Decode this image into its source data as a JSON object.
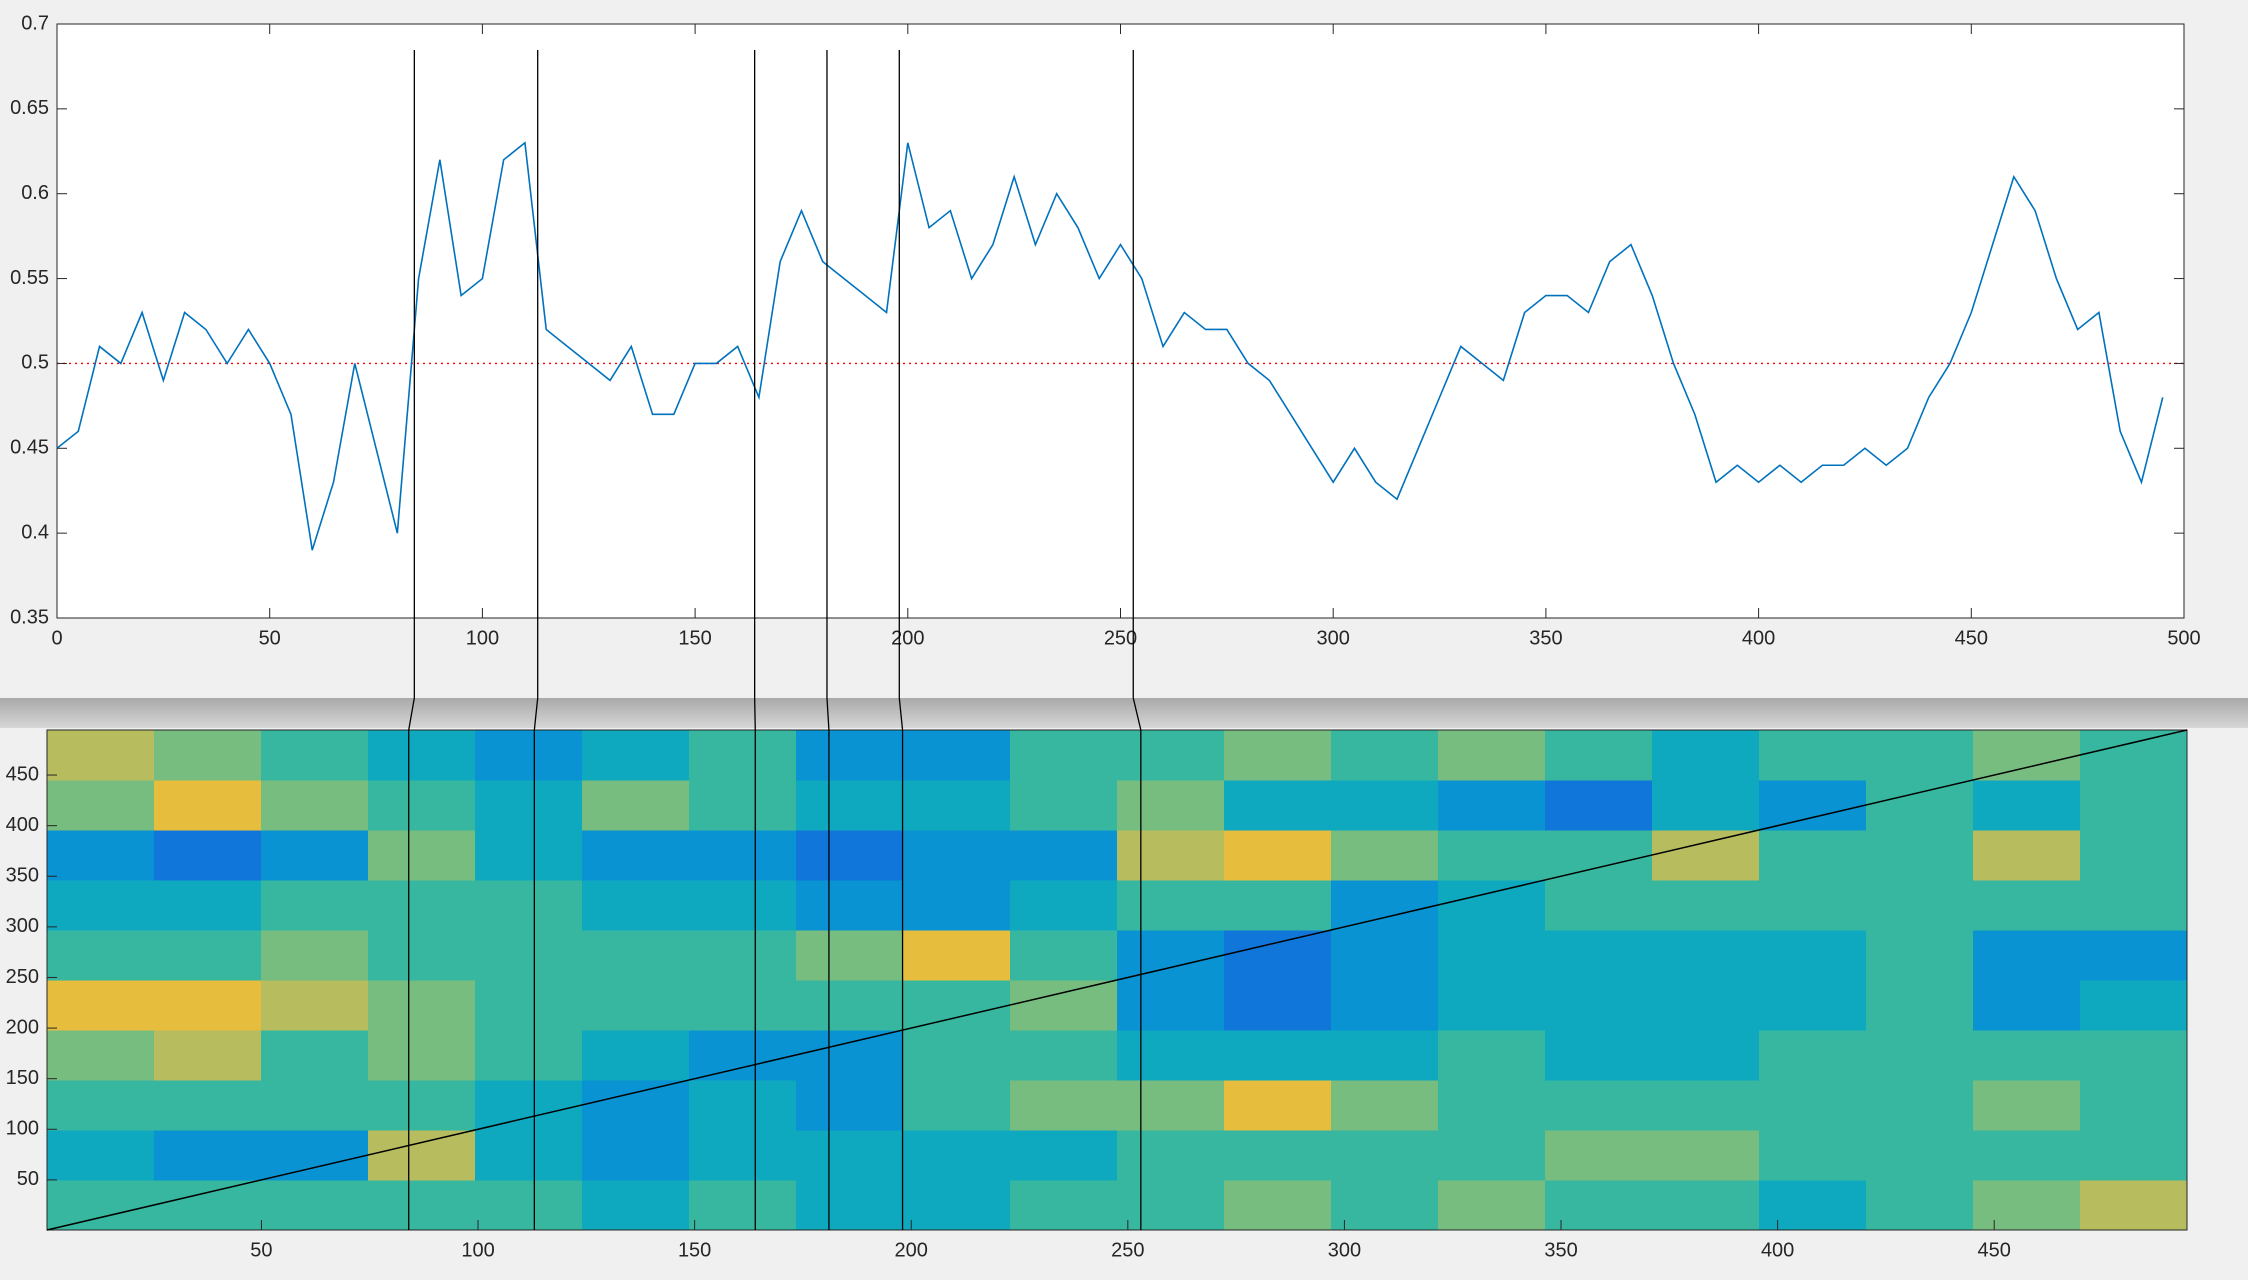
{
  "chart_data": [
    {
      "type": "line",
      "x": [
        0,
        5,
        10,
        15,
        20,
        25,
        30,
        35,
        40,
        45,
        50,
        55,
        60,
        65,
        70,
        75,
        80,
        85,
        90,
        95,
        100,
        105,
        110,
        115,
        120,
        125,
        130,
        135,
        140,
        145,
        150,
        155,
        160,
        165,
        170,
        175,
        180,
        185,
        190,
        195,
        200,
        205,
        210,
        215,
        220,
        225,
        230,
        235,
        240,
        245,
        250,
        255,
        260,
        265,
        270,
        275,
        280,
        285,
        290,
        295,
        300,
        305,
        310,
        315,
        320,
        325,
        330,
        335,
        340,
        345,
        350,
        355,
        360,
        365,
        370,
        375,
        380,
        385,
        390,
        395,
        400,
        405,
        410,
        415,
        420,
        425,
        430,
        435,
        440,
        445,
        450,
        455,
        460,
        465,
        470,
        475,
        480,
        485,
        490,
        495
      ],
      "series": [
        {
          "color": "#0072bd",
          "values": [
            0.45,
            0.46,
            0.51,
            0.5,
            0.53,
            0.49,
            0.53,
            0.52,
            0.5,
            0.52,
            0.5,
            0.47,
            0.39,
            0.43,
            0.5,
            0.45,
            0.4,
            0.55,
            0.62,
            0.54,
            0.55,
            0.62,
            0.63,
            0.52,
            0.51,
            0.5,
            0.49,
            0.51,
            0.47,
            0.47,
            0.5,
            0.5,
            0.51,
            0.48,
            0.56,
            0.59,
            0.56,
            0.55,
            0.54,
            0.53,
            0.63,
            0.58,
            0.59,
            0.55,
            0.57,
            0.61,
            0.57,
            0.6,
            0.58,
            0.55,
            0.57,
            0.55,
            0.51,
            0.53,
            0.52,
            0.52,
            0.5,
            0.49,
            0.47,
            0.45,
            0.43,
            0.45,
            0.43,
            0.42,
            0.45,
            0.48,
            0.51,
            0.5,
            0.49,
            0.53,
            0.54,
            0.54,
            0.53,
            0.56,
            0.57,
            0.54,
            0.5,
            0.47,
            0.43,
            0.44,
            0.43,
            0.44,
            0.43,
            0.44,
            0.44,
            0.45,
            0.44,
            0.45,
            0.48,
            0.5,
            0.53,
            0.57,
            0.61,
            0.59,
            0.55,
            0.52,
            0.53,
            0.46,
            0.43,
            0.48
          ]
        }
      ],
      "xlim": [
        0,
        500
      ],
      "ylim": [
        0.35,
        0.7
      ],
      "xticks": [
        0,
        50,
        100,
        150,
        200,
        250,
        300,
        350,
        400,
        450,
        500
      ],
      "yticks": [
        0.35,
        0.4,
        0.45,
        0.5,
        0.55,
        0.6,
        0.65,
        0.7
      ],
      "reference_line": {
        "value": 0.5,
        "color": "#ff0000"
      },
      "markers": [
        84,
        113,
        164,
        181,
        198,
        253
      ],
      "marker_color": "#000000"
    },
    {
      "type": "heatmap",
      "colormap": "parula",
      "xlim": [
        0.5,
        494.5
      ],
      "ylim": [
        0.5,
        494.5
      ],
      "xticks": [
        50,
        100,
        150,
        200,
        250,
        300,
        350,
        400,
        450
      ],
      "yticks": [
        50,
        100,
        150,
        200,
        250,
        300,
        350,
        400,
        450
      ],
      "diagonal": true,
      "diagonal_color": "#000000",
      "values": [
        [
          0.5,
          0.5,
          0.5,
          0.5,
          0.5,
          0.4,
          0.5,
          0.4,
          0.4,
          0.5,
          0.5,
          0.6,
          0.5,
          0.6,
          0.5,
          0.5,
          0.4,
          0.5,
          0.6,
          0.7
        ],
        [
          0.4,
          0.3,
          0.3,
          0.7,
          0.4,
          0.3,
          0.4,
          0.4,
          0.4,
          0.4,
          0.5,
          0.5,
          0.5,
          0.5,
          0.6,
          0.6,
          0.5,
          0.5,
          0.5,
          0.5
        ],
        [
          0.5,
          0.5,
          0.5,
          0.5,
          0.4,
          0.3,
          0.4,
          0.3,
          0.5,
          0.6,
          0.6,
          0.8,
          0.6,
          0.5,
          0.5,
          0.5,
          0.5,
          0.5,
          0.6,
          0.5
        ],
        [
          0.6,
          0.7,
          0.5,
          0.6,
          0.5,
          0.4,
          0.3,
          0.3,
          0.5,
          0.5,
          0.4,
          0.4,
          0.4,
          0.5,
          0.4,
          0.4,
          0.5,
          0.5,
          0.5,
          0.5
        ],
        [
          0.8,
          0.8,
          0.7,
          0.6,
          0.5,
          0.5,
          0.5,
          0.5,
          0.5,
          0.6,
          0.3,
          0.2,
          0.3,
          0.4,
          0.4,
          0.4,
          0.4,
          0.5,
          0.3,
          0.4
        ],
        [
          0.5,
          0.5,
          0.6,
          0.5,
          0.5,
          0.5,
          0.5,
          0.6,
          0.8,
          0.5,
          0.3,
          0.2,
          0.3,
          0.4,
          0.4,
          0.4,
          0.4,
          0.5,
          0.3,
          0.3
        ],
        [
          0.4,
          0.4,
          0.5,
          0.5,
          0.5,
          0.4,
          0.4,
          0.3,
          0.3,
          0.4,
          0.5,
          0.5,
          0.3,
          0.4,
          0.5,
          0.5,
          0.5,
          0.5,
          0.5,
          0.5
        ],
        [
          0.3,
          0.2,
          0.3,
          0.6,
          0.4,
          0.3,
          0.3,
          0.2,
          0.3,
          0.3,
          0.7,
          0.8,
          0.6,
          0.5,
          0.5,
          0.7,
          0.5,
          0.5,
          0.7,
          0.5
        ],
        [
          0.6,
          0.8,
          0.6,
          0.5,
          0.4,
          0.6,
          0.5,
          0.4,
          0.4,
          0.5,
          0.6,
          0.4,
          0.4,
          0.3,
          0.2,
          0.4,
          0.3,
          0.5,
          0.4,
          0.5
        ],
        [
          0.7,
          0.6,
          0.5,
          0.4,
          0.3,
          0.4,
          0.5,
          0.3,
          0.3,
          0.5,
          0.5,
          0.6,
          0.5,
          0.6,
          0.5,
          0.4,
          0.5,
          0.5,
          0.6,
          0.5
        ]
      ]
    }
  ]
}
